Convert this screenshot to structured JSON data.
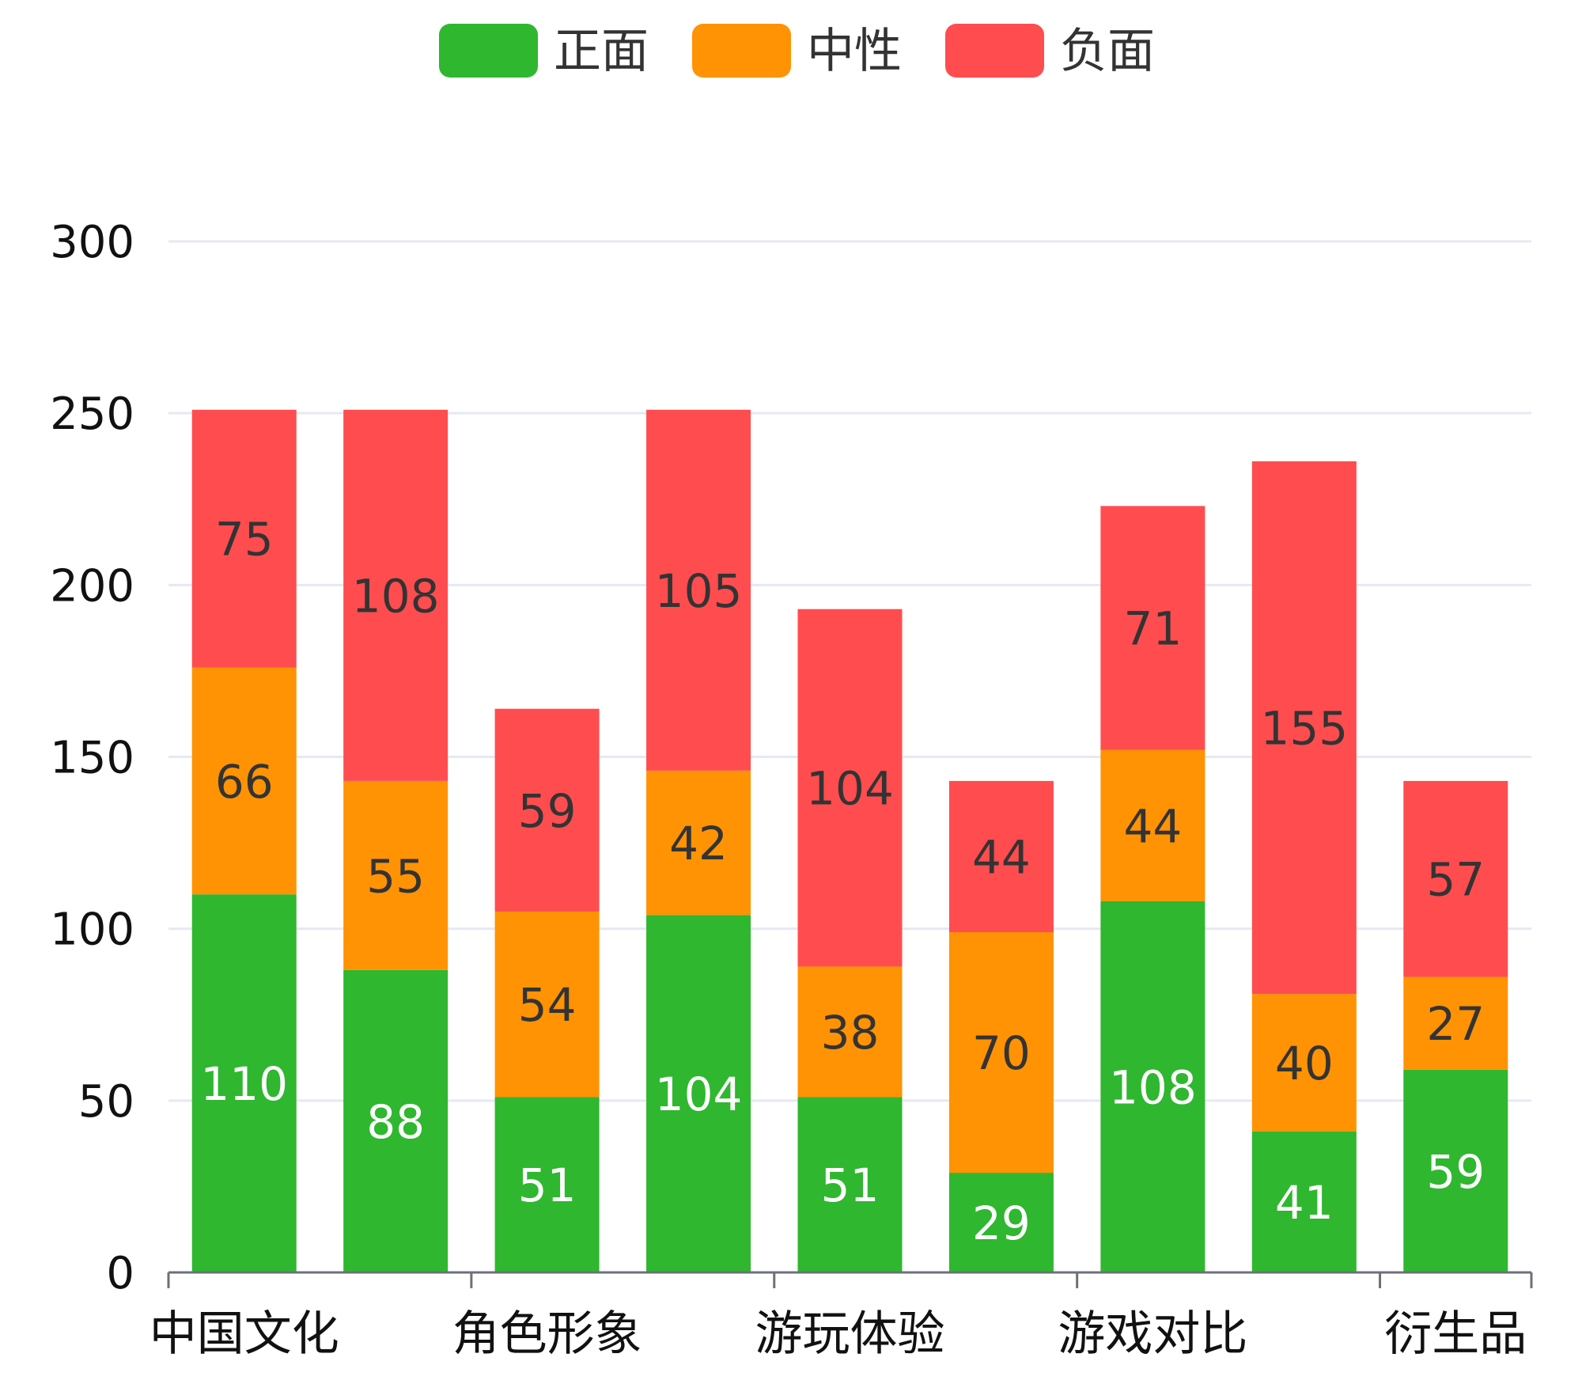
{
  "chart_data": {
    "type": "bar",
    "stacked": true,
    "title": "",
    "xlabel": "",
    "ylabel": "",
    "categories": [
      "中国文化",
      "",
      "角色形象",
      "",
      "游玩体验",
      "",
      "游戏对比",
      "",
      "衍生品"
    ],
    "y_ticks": [
      "0",
      "50",
      "100",
      "150",
      "200",
      "250",
      "300"
    ],
    "ylim": [
      0,
      300
    ],
    "grid": true,
    "legend_position": "top-center",
    "series": [
      {
        "name": "正面",
        "color": "#2fb72f",
        "label_color": "#ffffff",
        "values": [
          110,
          88,
          51,
          104,
          51,
          29,
          108,
          41,
          59
        ],
        "labels": [
          "110",
          "88",
          "51",
          "104",
          "51",
          "29",
          "108",
          "41",
          "59"
        ]
      },
      {
        "name": "中性",
        "color": "#ff9304",
        "label_color": "#333333",
        "values": [
          66,
          55,
          54,
          42,
          38,
          70,
          44,
          40,
          27
        ],
        "labels": [
          "66",
          "55",
          "54",
          "42",
          "38",
          "70",
          "44",
          "40",
          "27"
        ]
      },
      {
        "name": "负面",
        "color": "#ff4d4f",
        "label_color": "#333333",
        "values": [
          75,
          108,
          59,
          105,
          104,
          44,
          71,
          155,
          57
        ],
        "labels": [
          "75",
          "108",
          "59",
          "105",
          "104",
          "44",
          "71",
          "155",
          "57"
        ]
      }
    ]
  }
}
